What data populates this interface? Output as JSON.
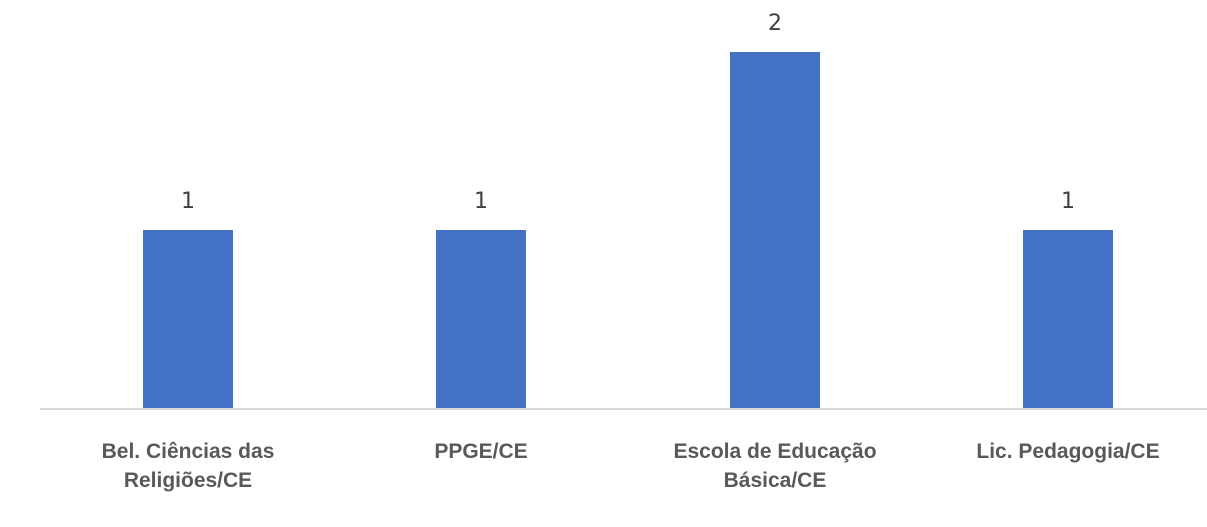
{
  "chart_data": {
    "type": "bar",
    "title": "",
    "xlabel": "",
    "ylabel": "",
    "categories": [
      [
        "Bel. Ciências das",
        "Religiões/CE"
      ],
      [
        "PPGE/CE"
      ],
      [
        "Escola de Educação",
        "Básica/CE"
      ],
      [
        "Lic. Pedagogia/CE"
      ]
    ],
    "values": [
      1,
      1,
      2,
      1
    ],
    "data_labels": [
      "1",
      "1",
      "2",
      "1"
    ],
    "ylim": [
      0,
      2
    ],
    "grid": false,
    "legend": "none",
    "colors": {
      "bar": "#4472C4",
      "axis": "#D9D9D9",
      "value_text": "#404040",
      "category_text": "#595959"
    }
  }
}
